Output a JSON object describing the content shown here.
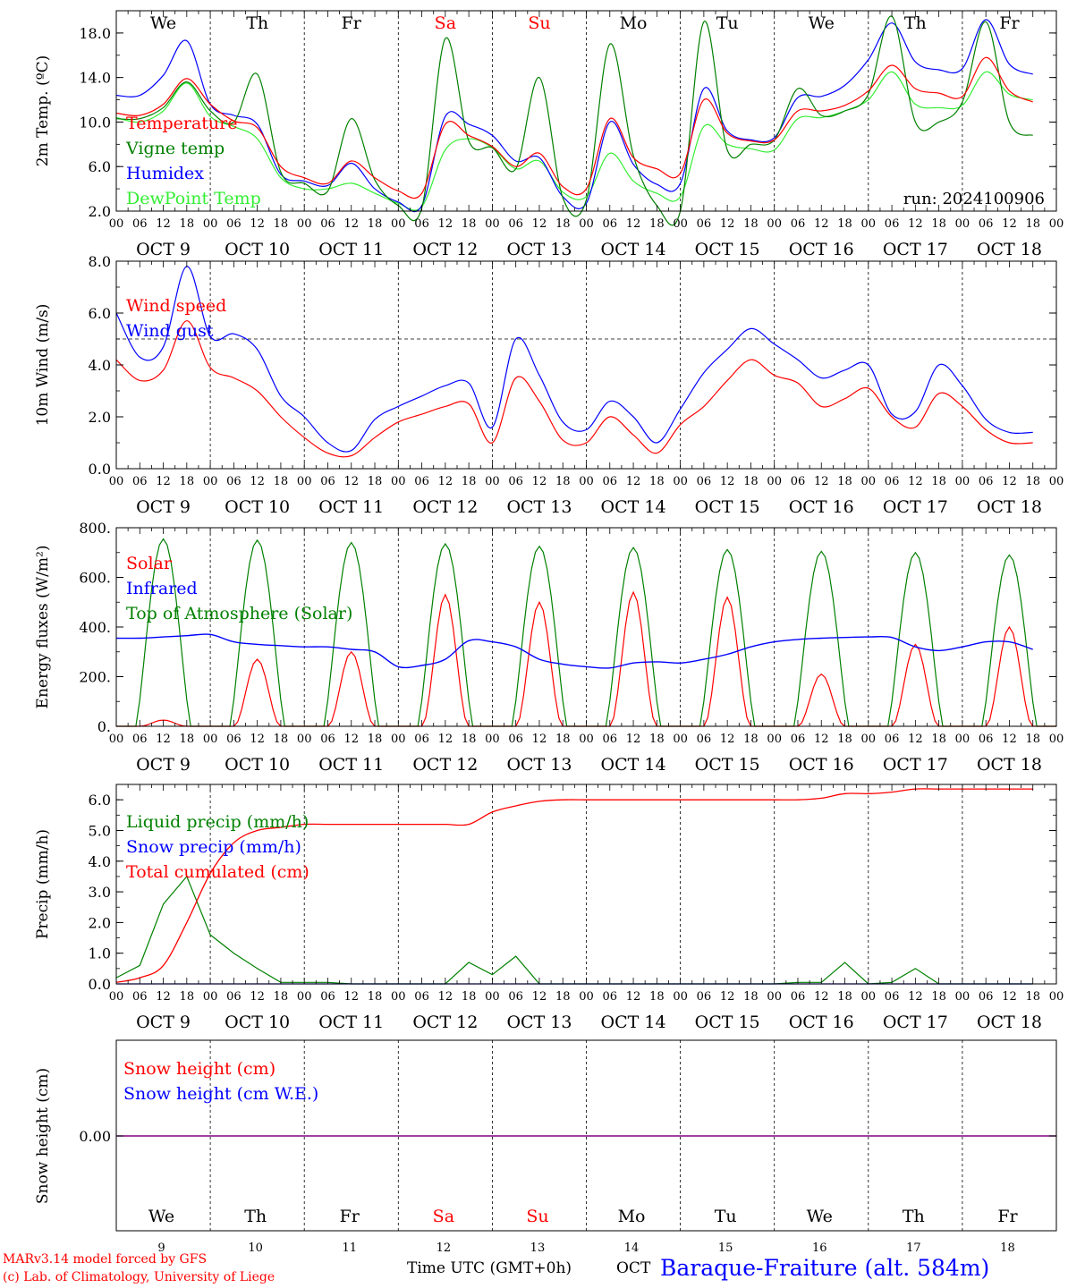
{
  "footer": {
    "model": "MARv3.14 model forced by GFS",
    "lab": "(c) Lab. of Climatology, University of Liege",
    "axis_title": "Time UTC (GMT+0h)",
    "month": "OCT",
    "station": "Baraque-Fraiture (alt. 584m)"
  },
  "colors": {
    "red": "#ff0000",
    "green": "#008000",
    "blue": "#0000ff",
    "light_green": "#33ee33",
    "purple": "#800080",
    "weekend": "#ff0000",
    "text": "#000000"
  },
  "days": {
    "weekdays": [
      "We",
      "Th",
      "Fr",
      "Sa",
      "Su",
      "Mo",
      "Tu",
      "We",
      "Th",
      "Fr"
    ],
    "weekend_flags": [
      false,
      false,
      false,
      true,
      true,
      false,
      false,
      false,
      false,
      false
    ],
    "dates": [
      "OCT  9",
      "OCT 10",
      "OCT 11",
      "OCT 12",
      "OCT 13",
      "OCT 14",
      "OCT 15",
      "OCT 16",
      "OCT 17",
      "OCT 18"
    ],
    "day_numbers": [
      "9",
      "10",
      "11",
      "12",
      "13",
      "14",
      "15",
      "16",
      "17",
      "18"
    ],
    "hour_labels": [
      "00",
      "06",
      "12",
      "18"
    ],
    "final_hour_label": "00"
  },
  "chart_data": [
    {
      "id": "temp",
      "type": "line",
      "ylabel": "2m Temp. (ºC)",
      "ylim": [
        2.0,
        20.0
      ],
      "yticks": [
        "2.0",
        "6.0",
        "10.0",
        "14.0",
        "18.0"
      ],
      "ytick_values": [
        2,
        6,
        10,
        14,
        18
      ],
      "annotation": "run: 2024100906",
      "x_hours_start": "OCT 9 00 UTC",
      "x_step_hours": 6,
      "series": [
        {
          "name": "Temperature",
          "color": "#ff0000",
          "values": [
            10.8,
            10.6,
            11.6,
            13.9,
            11.6,
            10.1,
            9.5,
            6.0,
            5.0,
            4.5,
            6.5,
            5.0,
            3.8,
            3.6,
            9.8,
            8.8,
            7.8,
            6.0,
            7.2,
            4.2,
            4.0,
            10.3,
            6.8,
            5.8,
            5.4,
            12.0,
            9.0,
            8.3,
            8.4,
            11.0,
            11.0,
            11.5,
            12.8,
            15.1,
            13.0,
            12.6,
            12.3,
            15.8,
            12.8,
            11.8
          ]
        },
        {
          "name": "Vigne temp",
          "color": "#008000",
          "values": [
            10.3,
            10.3,
            11.3,
            13.6,
            11.0,
            10.0,
            14.3,
            5.5,
            4.5,
            3.8,
            10.3,
            4.8,
            2.5,
            2.3,
            17.5,
            8.3,
            7.7,
            5.8,
            14.0,
            3.2,
            3.0,
            17.0,
            7.0,
            2.5,
            1.5,
            19.0,
            7.5,
            8.0,
            8.4,
            13.0,
            10.6,
            11.0,
            12.5,
            19.5,
            10.0,
            10.0,
            11.8,
            19.0,
            10.0,
            8.8
          ]
        },
        {
          "name": "Humidex",
          "color": "#0000ff",
          "values": [
            12.4,
            12.4,
            14.2,
            17.3,
            11.6,
            10.6,
            9.8,
            5.3,
            4.7,
            4.3,
            6.3,
            4.0,
            2.8,
            2.5,
            10.5,
            9.8,
            8.8,
            6.5,
            6.8,
            3.3,
            2.7,
            10.0,
            6.2,
            4.4,
            4.5,
            13.0,
            9.2,
            8.4,
            8.6,
            12.2,
            12.3,
            13.3,
            15.6,
            18.9,
            15.4,
            14.7,
            14.8,
            19.2,
            15.2,
            14.3
          ]
        },
        {
          "name": "DewPoint Temp",
          "color": "#33ee33",
          "values": [
            10.4,
            10.0,
            11.0,
            13.5,
            10.5,
            9.6,
            8.5,
            5.0,
            4.0,
            4.0,
            4.5,
            3.6,
            2.7,
            2.4,
            7.5,
            8.5,
            7.7,
            5.8,
            6.5,
            3.7,
            3.3,
            7.2,
            4.7,
            3.6,
            3.3,
            9.6,
            8.0,
            7.6,
            7.5,
            10.3,
            10.4,
            11.0,
            12.0,
            14.5,
            11.6,
            11.3,
            11.5,
            14.5,
            12.5,
            12.0
          ]
        }
      ]
    },
    {
      "id": "wind",
      "type": "line",
      "ylabel": "10m Wind (m/s)",
      "ylim": [
        0.0,
        8.0
      ],
      "yticks": [
        "0.0",
        "2.0",
        "4.0",
        "6.0",
        "8.0"
      ],
      "ytick_values": [
        0,
        2,
        4,
        6,
        8
      ],
      "reference_line": 5.0,
      "x_hours_start": "OCT 9 00 UTC",
      "x_step_hours": 6,
      "series": [
        {
          "name": "Wind speed",
          "color": "#ff0000",
          "values": [
            4.2,
            3.4,
            3.8,
            5.7,
            3.9,
            3.5,
            3.0,
            2.0,
            1.2,
            0.6,
            0.5,
            1.2,
            1.8,
            2.1,
            2.4,
            2.5,
            1.0,
            3.5,
            2.6,
            1.1,
            1.0,
            2.0,
            1.3,
            0.6,
            1.7,
            2.4,
            3.4,
            4.2,
            3.6,
            3.3,
            2.4,
            2.7,
            3.1,
            2.0,
            1.6,
            2.9,
            2.4,
            1.5,
            1.0,
            1.0
          ]
        },
        {
          "name": "Wind gust",
          "color": "#0000ff",
          "values": [
            6.0,
            4.3,
            4.7,
            7.8,
            5.1,
            5.2,
            4.6,
            2.8,
            2.0,
            1.0,
            0.7,
            1.9,
            2.4,
            2.8,
            3.2,
            3.3,
            1.6,
            5.0,
            3.6,
            1.8,
            1.5,
            2.6,
            2.0,
            1.0,
            2.3,
            3.7,
            4.6,
            5.4,
            4.8,
            4.2,
            3.5,
            3.8,
            4.0,
            2.1,
            2.2,
            4.0,
            3.2,
            1.9,
            1.4,
            1.4
          ]
        }
      ]
    },
    {
      "id": "energy",
      "type": "line",
      "ylabel": "Energy fluxes (W/m²)",
      "ylim": [
        0,
        800
      ],
      "yticks": [
        "0.",
        "200.",
        "400.",
        "600.",
        "800."
      ],
      "ytick_values": [
        0,
        200,
        400,
        600,
        800
      ],
      "x_hours_start": "OCT 9 00 UTC",
      "x_step_hours": 6,
      "series": [
        {
          "name": "Solar",
          "color": "#ff0000",
          "solar_peaks": [
            25,
            270,
            300,
            530,
            500,
            540,
            520,
            210,
            330,
            400
          ]
        },
        {
          "name": "Infrared",
          "color": "#0000ff",
          "values": [
            355,
            355,
            360,
            365,
            370,
            340,
            330,
            325,
            320,
            320,
            310,
            300,
            240,
            245,
            270,
            345,
            340,
            320,
            270,
            250,
            240,
            235,
            255,
            260,
            255,
            270,
            290,
            320,
            340,
            350,
            355,
            358,
            360,
            358,
            320,
            305,
            320,
            340,
            340,
            310
          ]
        },
        {
          "name": "Top of Atmosphere (Solar)",
          "color": "#008000",
          "peaks": [
            755,
            750,
            740,
            735,
            725,
            720,
            712,
            705,
            700,
            690
          ]
        }
      ]
    },
    {
      "id": "precip",
      "type": "line",
      "ylabel": "Precip (mm/h)",
      "ylim": [
        0.0,
        6.5
      ],
      "yticks": [
        "0.0",
        "1.0",
        "2.0",
        "3.0",
        "4.0",
        "5.0",
        "6.0"
      ],
      "ytick_values": [
        0,
        1,
        2,
        3,
        4,
        5,
        6
      ],
      "x_hours_start": "OCT 9 00 UTC",
      "x_step_hours": 6,
      "series": [
        {
          "name": "Liquid precip (mm/h)",
          "color": "#008000",
          "values": [
            0.2,
            0.6,
            2.6,
            3.5,
            1.6,
            1.0,
            0.5,
            0.05,
            0.05,
            0.05,
            0.0,
            0.0,
            0.0,
            0.0,
            0.0,
            0.7,
            0.3,
            0.9,
            0.0,
            0.0,
            0.0,
            0.0,
            0.0,
            0.0,
            0.0,
            0.0,
            0.0,
            0.0,
            0.0,
            0.05,
            0.05,
            0.7,
            0.0,
            0.05,
            0.5,
            0.0,
            0.0,
            0.0,
            0.0,
            0.0
          ]
        },
        {
          "name": "Snow precip (mm/h)",
          "color": "#0000ff",
          "values": [
            0,
            0,
            0,
            0,
            0,
            0,
            0,
            0,
            0,
            0,
            0,
            0,
            0,
            0,
            0,
            0,
            0,
            0,
            0,
            0,
            0,
            0,
            0,
            0,
            0,
            0,
            0,
            0,
            0,
            0,
            0,
            0,
            0,
            0,
            0,
            0,
            0,
            0,
            0,
            0
          ]
        },
        {
          "name": "Total cumulated (cm)",
          "color": "#ff0000",
          "values": [
            0.05,
            0.2,
            0.6,
            2.0,
            3.6,
            4.6,
            5.0,
            5.1,
            5.2,
            5.2,
            5.2,
            5.2,
            5.2,
            5.2,
            5.2,
            5.2,
            5.6,
            5.8,
            5.95,
            6.0,
            6.0,
            6.0,
            6.0,
            6.0,
            6.0,
            6.0,
            6.0,
            6.0,
            6.0,
            6.0,
            6.05,
            6.2,
            6.2,
            6.25,
            6.35,
            6.35,
            6.35,
            6.35,
            6.35,
            6.35
          ]
        }
      ]
    },
    {
      "id": "snow",
      "type": "line",
      "ylabel": "Snow height (cm)",
      "yticks": [
        "0.00"
      ],
      "ytick_values": [
        0
      ],
      "series": [
        {
          "name": "Snow height (cm)",
          "color": "#ff0000",
          "values": [
            0,
            0
          ]
        },
        {
          "name": "Snow height (cm W.E.)",
          "color": "#0000ff",
          "values": [
            0,
            0
          ]
        }
      ]
    }
  ]
}
